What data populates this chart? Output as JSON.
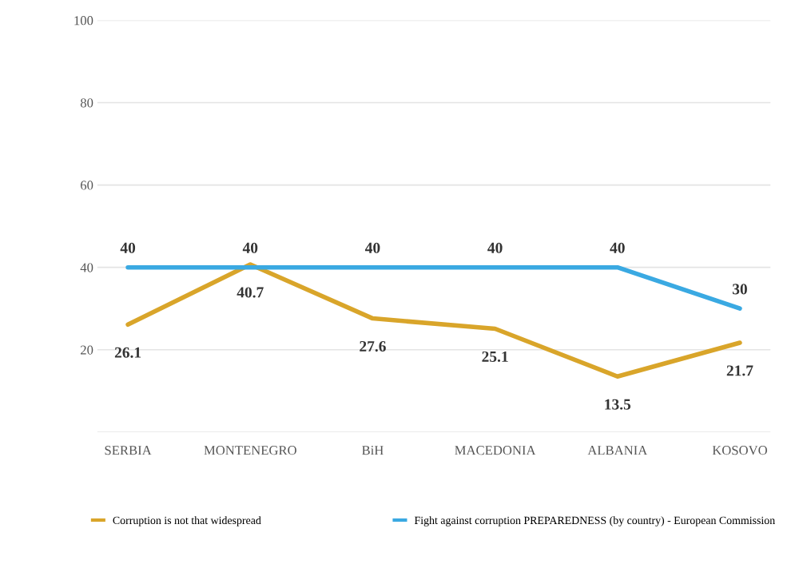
{
  "chart_data": {
    "type": "line",
    "categories": [
      "SERBIA",
      "MONTENEGRO",
      "BiH",
      "MACEDONIA",
      "ALBANIA",
      "KOSOVO"
    ],
    "series": [
      {
        "name": "Corruption is not that widespread",
        "color": "#d9a52a",
        "values": [
          26.1,
          40.7,
          27.6,
          25.1,
          13.5,
          21.7
        ]
      },
      {
        "name": "Fight against corruption PREPAREDNESS (by country) - European Commission",
        "color": "#3aa9e2",
        "values": [
          40,
          40,
          40,
          40,
          40,
          30
        ]
      }
    ],
    "ylim": [
      0,
      100
    ],
    "yticks": [
      {
        "value": 0,
        "label": null
      },
      20,
      40,
      60,
      80,
      100
    ],
    "grid": "y",
    "legend": "bottom",
    "data_labels": true,
    "marker": "none",
    "line_style": "solid"
  }
}
